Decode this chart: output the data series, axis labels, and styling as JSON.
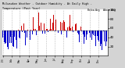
{
  "title_line1": "Milwaukee Weather - Outdoor Humidity - At Daily High - Temperature (Past Year)",
  "background_color": "#d4d4d4",
  "plot_bg_color": "#ffffff",
  "n_points": 365,
  "ylim": [
    0,
    100
  ],
  "ytick_vals": [
    20,
    40,
    60,
    80,
    100
  ],
  "ytick_labels": [
    "20",
    "40",
    "60",
    "80",
    "100"
  ],
  "legend_blue_label": "Below Avg",
  "legend_red_label": "Above Avg",
  "seed": 42,
  "bar_color_above": "#cc0000",
  "bar_color_below": "#0000cc",
  "grid_color": "#aaaaaa",
  "avg_line_color": "#000000",
  "avg_humidity": 55.0
}
